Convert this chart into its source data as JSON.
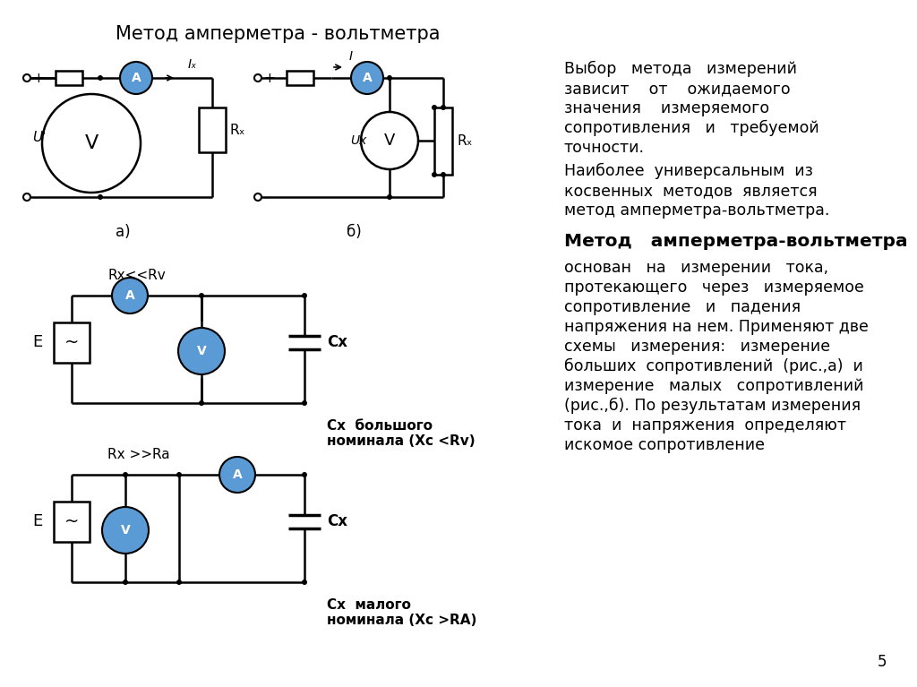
{
  "title": "Метод амперметра - вольтметра",
  "title_fontsize": 15,
  "background_color": "#ffffff",
  "text_color": "#000000",
  "ammeter_color": "#5b9bd5",
  "voltmeter_color": "#5b9bd5",
  "label_rx_less": "Rx<<Rv",
  "label_cx1": "Cx",
  "label_cx1_desc": "Cx  большого\nноминала (Xc <Rv)",
  "label_rx_greater": "Rx >>Ra",
  "label_cx2": "Cx",
  "label_cx2_desc": "Cx  малого\nноминала (Xc >RА)",
  "right_p1_line1": "Выбор   метода   измерений",
  "right_p1_line2": "зависит    от    ожидаемого",
  "right_p1_line3": "значения    измеряемого",
  "right_p1_line4": "сопротивления   и   требуемой",
  "right_p1_line5": "точности.",
  "right_p2_line1": "Наиболее  универсальным  из",
  "right_p2_line2": "косвенных  методов  является",
  "right_p2_line3": "метод амперметра-вольтметра.",
  "right_bold": "Метод   амперметра-вольтметра",
  "right_body_lines": [
    "основан   на   измерении   тока,",
    "протекающего   через   измеряемое",
    "сопротивление   и   падения",
    "напряжения на нем. Применяют две",
    "схемы   измерения:   измерение",
    "больших  сопротивлений  (рис.,а)  и",
    "измерение   малых   сопротивлений",
    "(рис.,б). По результатам измерения",
    "тока  и  напряжения  определяют",
    "искомое сопротивление"
  ],
  "page_number": "5"
}
